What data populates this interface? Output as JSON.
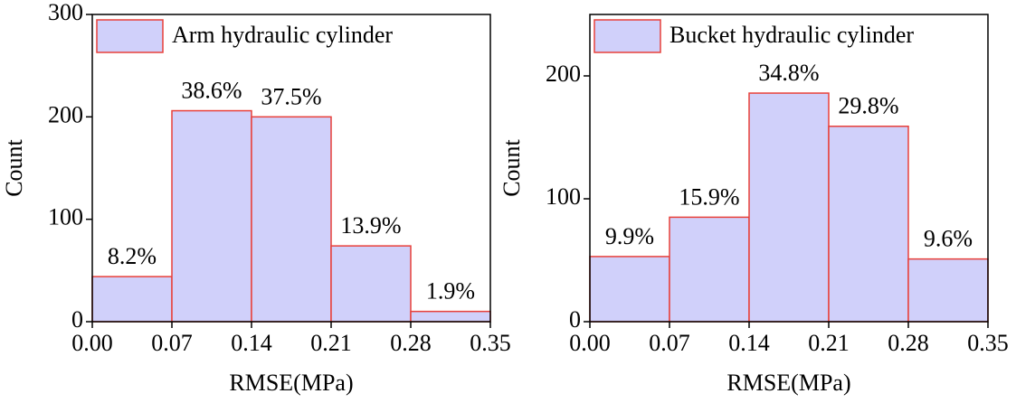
{
  "chart_data": [
    {
      "type": "histogram",
      "xlabel": "RMSE(MPa)",
      "ylabel": "Count",
      "bins": [
        0,
        0.07,
        0.14,
        0.21,
        0.28,
        0.35
      ],
      "series": [
        {
          "name": "Arm hydraulic cylinder",
          "color": "#d0d0fa",
          "edgecolor": "#e8403a",
          "values": [
            44,
            206,
            200,
            74,
            10
          ]
        }
      ],
      "annotations": [
        "8.2%",
        "38.6%",
        "37.5%",
        "13.9%",
        "1.9%"
      ],
      "xlim": [
        0,
        0.35
      ],
      "xticks": [
        {
          "value": 0,
          "label": "0.00"
        },
        {
          "value": 0.07,
          "label": "0.07"
        },
        {
          "value": 0.14,
          "label": "0.14"
        },
        {
          "value": 0.21,
          "label": "0.21"
        },
        {
          "value": 0.28,
          "label": "0.28"
        },
        {
          "value": 0.35,
          "label": "0.35"
        }
      ],
      "ylim": [
        0,
        300
      ],
      "yticks": [
        0,
        100,
        200,
        300
      ],
      "legend": "upper left"
    },
    {
      "type": "histogram",
      "xlabel": "RMSE(MPa)",
      "ylabel": "Count",
      "bins": [
        0,
        0.07,
        0.14,
        0.21,
        0.28,
        0.35
      ],
      "series": [
        {
          "name": "Bucket hydraulic cylinder",
          "color": "#d0d0fa",
          "edgecolor": "#e8403a",
          "values": [
            53,
            85,
            186,
            159,
            51
          ]
        }
      ],
      "annotations": [
        "9.9%",
        "15.9%",
        "34.8%",
        "29.8%",
        "9.6%"
      ],
      "xlim": [
        0,
        0.35
      ],
      "xticks": [
        {
          "value": 0,
          "label": "0.00"
        },
        {
          "value": 0.07,
          "label": "0.07"
        },
        {
          "value": 0.14,
          "label": "0.14"
        },
        {
          "value": 0.21,
          "label": "0.21"
        },
        {
          "value": 0.28,
          "label": "0.28"
        },
        {
          "value": 0.35,
          "label": "0.35"
        }
      ],
      "ylim": [
        0,
        250
      ],
      "yticks": [
        0,
        100,
        200
      ],
      "legend": "upper left"
    }
  ]
}
